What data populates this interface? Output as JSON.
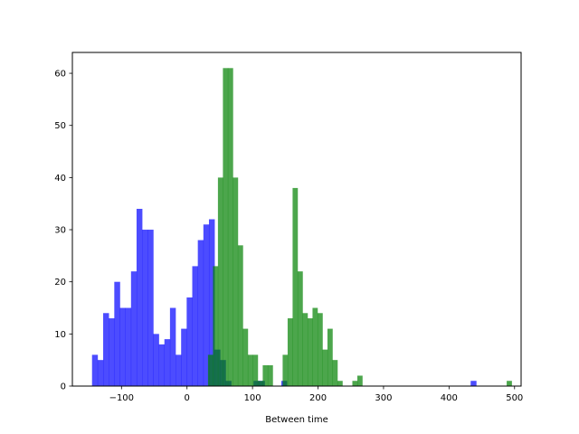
{
  "chart_data": {
    "type": "histogram",
    "title": "",
    "xlabel": "Between time",
    "ylabel": "",
    "xlim": [
      -175,
      510
    ],
    "ylim": [
      0,
      64
    ],
    "xticks": [
      -100,
      0,
      100,
      200,
      300,
      400,
      500
    ],
    "xtick_labels": [
      "−100",
      "0",
      "100",
      "200",
      "300",
      "400",
      "500"
    ],
    "yticks": [
      0,
      10,
      20,
      30,
      40,
      50,
      60
    ],
    "ytick_labels": [
      "0",
      "10",
      "20",
      "30",
      "40",
      "50",
      "60"
    ],
    "grid": false,
    "series": [
      {
        "color": "#0000ff",
        "alpha": 0.7,
        "bin_start": -145,
        "bin_width": 8.5,
        "counts": [
          6,
          5,
          14,
          13,
          20,
          15,
          15,
          22,
          34,
          30,
          30,
          10,
          8,
          9,
          15,
          6,
          11,
          17,
          23,
          28,
          31,
          32,
          7,
          5,
          1,
          0,
          0,
          0,
          0,
          1,
          1,
          0,
          0,
          0,
          1,
          0,
          0,
          0,
          0,
          0,
          0,
          0,
          0,
          0,
          0,
          0,
          0,
          0,
          0,
          0,
          0,
          0,
          0,
          0,
          0,
          0,
          0,
          0,
          0,
          0,
          0,
          0,
          0,
          0,
          0,
          0,
          0,
          0,
          1
        ]
      },
      {
        "color": "#008000",
        "alpha": 0.7,
        "bin_start": 32,
        "bin_width": 7.6,
        "counts": [
          6,
          23,
          40,
          61,
          61,
          40,
          27,
          11,
          6,
          6,
          1,
          4,
          4,
          0,
          0,
          6,
          13,
          38,
          22,
          14,
          13,
          15,
          14,
          7,
          11,
          5,
          1,
          0,
          0,
          1,
          2,
          0,
          0,
          0,
          0,
          0,
          0,
          0,
          0,
          0,
          0,
          0,
          0,
          0,
          0,
          0,
          0,
          0,
          0,
          0,
          0,
          0,
          0,
          0,
          0,
          0,
          0,
          0,
          0,
          0,
          1
        ]
      }
    ]
  }
}
